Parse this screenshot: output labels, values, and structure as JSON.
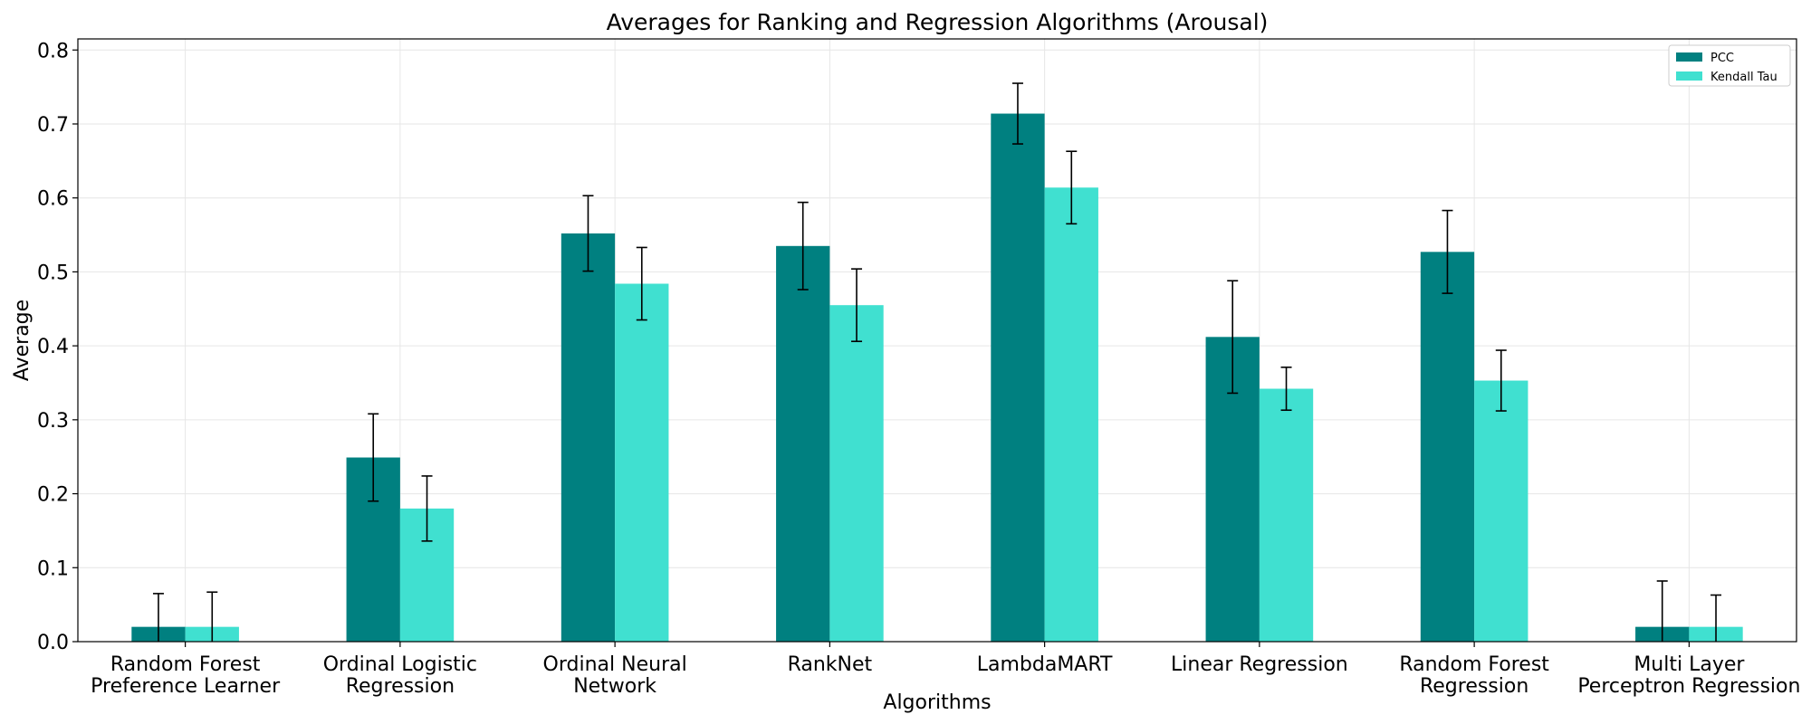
{
  "chart_data": {
    "type": "bar",
    "title": "Averages for Ranking and Regression Algorithms (Arousal)",
    "xlabel": "Algorithms",
    "ylabel": "Average",
    "ylim": [
      0,
      0.815
    ],
    "yticks": [
      "0.0",
      "0.1",
      "0.2",
      "0.3",
      "0.4",
      "0.5",
      "0.6",
      "0.7",
      "0.8"
    ],
    "grid": true,
    "legend_position": "top-right",
    "categories": [
      [
        "Random Forest",
        "Preference Learner"
      ],
      [
        "Ordinal Logistic",
        "Regression"
      ],
      [
        "Ordinal Neural",
        "Network"
      ],
      [
        "RankNet"
      ],
      [
        "LambdaMART"
      ],
      [
        "Linear Regression"
      ],
      [
        "Random Forest",
        "Regression"
      ],
      [
        "Multi Layer",
        "Perceptron Regression"
      ]
    ],
    "series": [
      {
        "name": "PCC",
        "color": "#008080",
        "values": [
          0.02,
          0.249,
          0.552,
          0.535,
          0.714,
          0.412,
          0.527,
          0.02
        ],
        "errors": [
          0.045,
          0.059,
          0.051,
          0.059,
          0.041,
          0.076,
          0.056,
          0.062
        ]
      },
      {
        "name": "Kendall Tau",
        "color": "#40e0d0",
        "values": [
          0.02,
          0.18,
          0.484,
          0.455,
          0.614,
          0.342,
          0.353,
          0.02
        ],
        "errors": [
          0.047,
          0.044,
          0.049,
          0.049,
          0.049,
          0.029,
          0.041,
          0.043
        ]
      }
    ]
  }
}
